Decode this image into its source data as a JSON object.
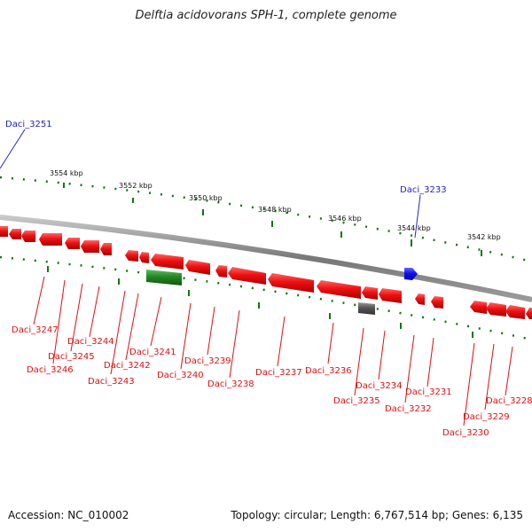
{
  "title": "Delftia acidovorans SPH-1, complete genome",
  "footer": {
    "accession": "Accession: NC_010002",
    "summary": "Topology: circular; Length: 6,767,514 bp; Genes: 6,135"
  },
  "colors": {
    "forward_gene": "#2222cc",
    "reverse_gene": "#dd1111",
    "rna_gene": "#228822",
    "pseudo_gene": "#666666",
    "backbone": "#888888",
    "tick": "#117711"
  },
  "scale_labels": [
    "3554 kbp",
    "3552 kbp",
    "3550 kbp",
    "3548 kbp",
    "3546 kbp",
    "3544 kbp",
    "3542 kbp"
  ],
  "gene_labels": {
    "forward": [
      "Daci_3251",
      "Daci_3233"
    ],
    "reverse": [
      "Daci_3247",
      "Daci_3246",
      "Daci_3245",
      "Daci_3244",
      "Daci_3243",
      "Daci_3242",
      "Daci_3241",
      "Daci_3240",
      "Daci_3239",
      "Daci_3238",
      "Daci_3237",
      "Daci_3236",
      "Daci_3235",
      "Daci_3234",
      "Daci_3232",
      "Daci_3231",
      "Daci_3230",
      "Daci_3229",
      "Daci_3228"
    ]
  }
}
